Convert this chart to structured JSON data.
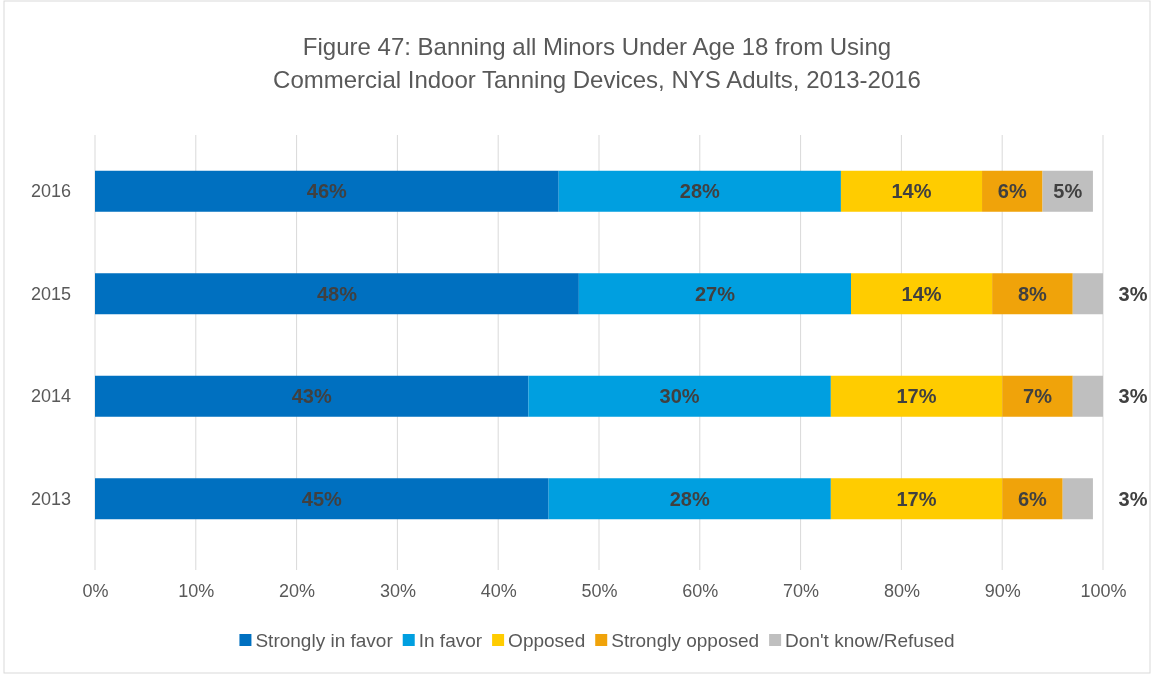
{
  "chart_data": {
    "type": "bar",
    "orientation": "horizontal",
    "stacked": true,
    "title": "Figure 47: Banning all Minors Under Age 18 from Using Commercial Indoor Tanning Devices, NYS Adults, 2013-2016",
    "categories": [
      "2016",
      "2015",
      "2014",
      "2013"
    ],
    "series": [
      {
        "name": "Strongly in favor",
        "color": "#0070c0",
        "values": [
          46,
          48,
          43,
          45
        ],
        "value_labels": [
          "46%",
          "48%",
          "43%",
          "45%"
        ]
      },
      {
        "name": "In favor",
        "color": "#009fe0",
        "values": [
          28,
          27,
          30,
          28
        ],
        "value_labels": [
          "28%",
          "27%",
          "30%",
          "28%"
        ]
      },
      {
        "name": "Opposed",
        "color": "#ffcc00",
        "values": [
          14,
          14,
          17,
          17
        ],
        "value_labels": [
          "14%",
          "14%",
          "17%",
          "17%"
        ]
      },
      {
        "name": "Strongly opposed",
        "color": "#f0a30a",
        "values": [
          6,
          8,
          7,
          6
        ],
        "value_labels": [
          "6%",
          "8%",
          "7%",
          "6%"
        ]
      },
      {
        "name": "Don't know/Refused",
        "color": "#bfbfbf",
        "values": [
          5,
          3,
          3,
          3
        ],
        "value_labels": [
          "5%",
          "3%",
          "3%",
          "3%"
        ]
      }
    ],
    "xlim": [
      0,
      100
    ],
    "xticks": [
      {
        "value": 0,
        "label": "0%"
      },
      {
        "value": 10,
        "label": "10%"
      },
      {
        "value": 20,
        "label": "20%"
      },
      {
        "value": 30,
        "label": "30%"
      },
      {
        "value": 40,
        "label": "40%"
      },
      {
        "value": 50,
        "label": "50%"
      },
      {
        "value": 60,
        "label": "60%"
      },
      {
        "value": 70,
        "label": "70%"
      },
      {
        "value": 80,
        "label": "80%"
      },
      {
        "value": 90,
        "label": "90%"
      },
      {
        "value": 100,
        "label": "100%"
      }
    ],
    "grid": "x",
    "legend": "bottom"
  }
}
